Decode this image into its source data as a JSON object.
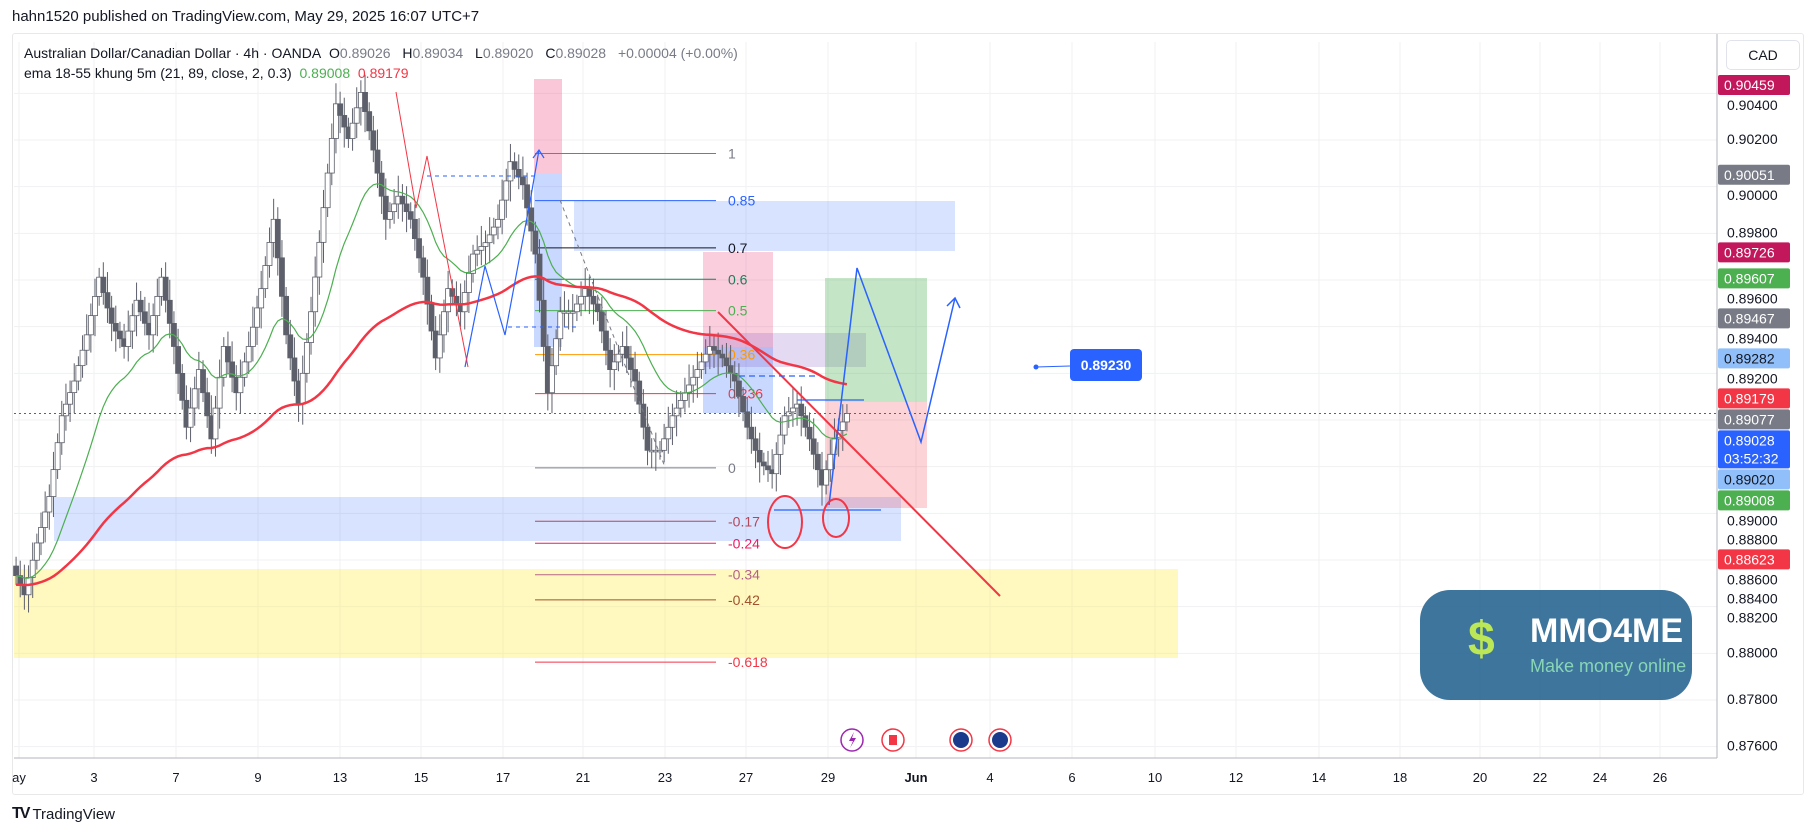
{
  "published": "hahn1520 published on TradingView.com, May 29, 2025 16:07 UTC+7",
  "symbol": {
    "name": "Australian Dollar/Canadian Dollar · 4h · OANDA",
    "o_label": "O",
    "o": "0.89026",
    "h_label": "H",
    "h": "0.89034",
    "l_label": "L",
    "l": "0.89020",
    "c_label": "C",
    "c": "0.89028",
    "change": "+0.00004 (+0.00%)"
  },
  "indicator": {
    "name": "ema 18-55 khung 5m (21, 89, close, 2, 0.3)",
    "fast": "0.89008",
    "slow": "0.89179",
    "fast_color": "#4caf50",
    "slow_color": "#f23645"
  },
  "currency_button": "CAD",
  "footer_brand": "TradingView",
  "watermark": {
    "title": "MMO4ME",
    "subtitle": "Make money online"
  },
  "price_bubble": "0.89230",
  "chart_data": {
    "type": "candlestick",
    "timeframe": "4h",
    "x_tick_labels": [
      "ay",
      "3",
      "7",
      "9",
      "13",
      "15",
      "17",
      "21",
      "23",
      "27",
      "29",
      "Jun",
      "4",
      "6",
      "10",
      "12",
      "14",
      "18",
      "20",
      "22",
      "24",
      "26"
    ],
    "y_tick_labels": [
      "0.90400",
      "0.90200",
      "0.90000",
      "0.89800",
      "0.89600",
      "0.89400",
      "0.89200",
      "0.89000",
      "0.88800",
      "0.88600",
      "0.88400",
      "0.88200",
      "0.88000",
      "0.87800",
      "0.87600"
    ],
    "ylim": [
      0.8756,
      0.9064
    ],
    "closes_approx": [
      0.88374,
      0.88251,
      0.88473,
      0.88672,
      0.89018,
      0.89167,
      0.89365,
      0.89612,
      0.89414,
      0.89315,
      0.89513,
      0.89365,
      0.89612,
      0.89315,
      0.88969,
      0.89216,
      0.88919,
      0.89315,
      0.89117,
      0.89315,
      0.89563,
      0.8986,
      0.89365,
      0.89068,
      0.89464,
      0.8991,
      0.90355,
      0.90206,
      0.90404,
      0.90157,
      0.8986,
      0.89959,
      0.8986,
      0.89612,
      0.89266,
      0.89563,
      0.89464,
      0.89711,
      0.8976,
      0.8986,
      0.90107,
      0.90008,
      0.89711,
      0.89117,
      0.89464,
      0.89464,
      0.89563,
      0.89464,
      0.89216,
      0.89315,
      0.89167,
      0.8887,
      0.8887,
      0.89018,
      0.89117,
      0.89216,
      0.89315,
      0.89266,
      0.89167,
      0.88969,
      0.8882,
      0.8877,
      0.89018,
      0.89068,
      0.88919,
      0.88721,
      0.88919,
      0.89028
    ],
    "ema_periods": [
      21,
      89
    ],
    "fib": {
      "price_0": 0.88795,
      "price_1": 0.90142,
      "levels": [
        {
          "level": 1,
          "label": "1",
          "color": "#787b86"
        },
        {
          "level": 0.85,
          "label": "0.85",
          "color": "#2962ff"
        },
        {
          "level": 0.7,
          "label": "0.7",
          "color": "#131722"
        },
        {
          "level": 0.6,
          "label": "0.6",
          "color": "#1b7f5c"
        },
        {
          "level": 0.5,
          "label": "0.5",
          "color": "#4caf50"
        },
        {
          "level": 0.36,
          "label": "0.36",
          "color": "#ff9800"
        },
        {
          "level": 0.236,
          "label": "0.236",
          "color": "#f23645"
        },
        {
          "level": 0,
          "label": "0",
          "color": "#787b86"
        },
        {
          "level": -0.17,
          "label": "-0.17",
          "color": "#b2485c"
        },
        {
          "level": -0.24,
          "label": "-0.24",
          "color": "#e91e63"
        },
        {
          "level": -0.34,
          "label": "-0.34",
          "color": "#b5628a"
        },
        {
          "level": -0.42,
          "label": "-0.42",
          "color": "#a0522d"
        },
        {
          "level": -0.618,
          "label": "-0.618",
          "color": "#f23645"
        }
      ]
    },
    "price_badges": [
      {
        "value": "0.90459",
        "color": "#c2185b"
      },
      {
        "value": "0.90051",
        "color": "#787b86"
      },
      {
        "value": "0.89726",
        "color": "#c2185b"
      },
      {
        "value": "0.89607",
        "color": "#4caf50"
      },
      {
        "value": "0.89467",
        "color": "#787b86"
      },
      {
        "value": "0.89282",
        "color": "#90bff9"
      },
      {
        "value": "0.89179",
        "color": "#f23645"
      },
      {
        "value": "0.89077",
        "color": "#787b86"
      },
      {
        "value": "0.89028",
        "color": "#2962ff",
        "countdown": "03:52:32"
      },
      {
        "value": "0.89020",
        "color": "#90bff9"
      },
      {
        "value": "0.89008",
        "color": "#4caf50"
      },
      {
        "value": "0.88623",
        "color": "#f23645"
      }
    ],
    "events": [
      {
        "icon": "lightning-icon",
        "color": "#9c27b0"
      },
      {
        "icon": "canada-flag-icon",
        "color": "#f23645"
      },
      {
        "icon": "australia-flag-icon",
        "color": "#f23645"
      },
      {
        "icon": "australia-flag-icon",
        "color": "#f23645"
      }
    ]
  }
}
